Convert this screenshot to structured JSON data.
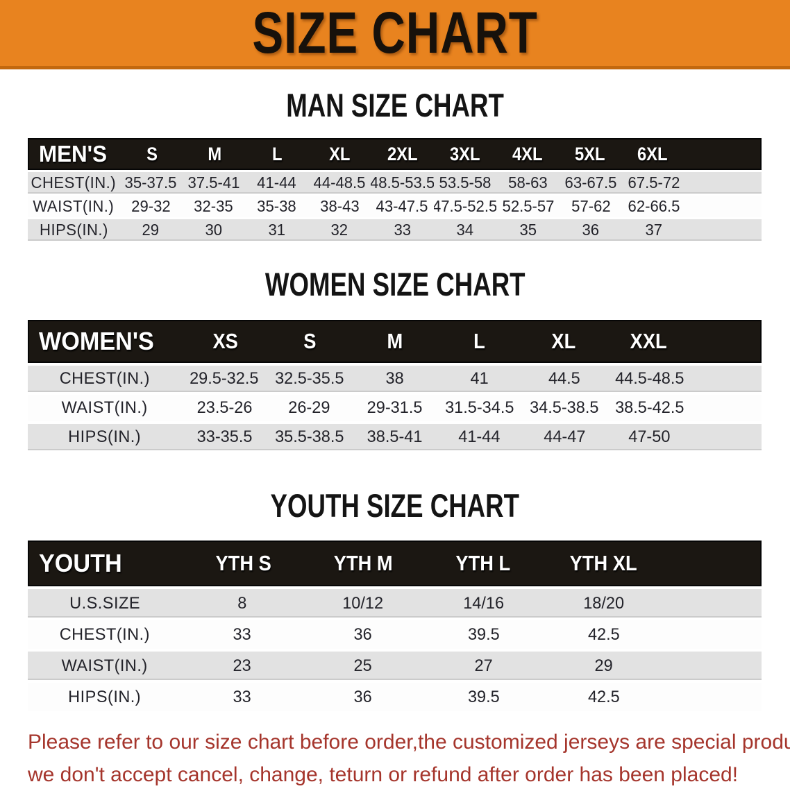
{
  "banner": {
    "title": "SIZE CHART"
  },
  "sections": [
    {
      "heading": "MAN SIZE CHART",
      "table": {
        "label": "MEN'S",
        "sizes": [
          "S",
          "M",
          "L",
          "XL",
          "2XL",
          "3XL",
          "4XL",
          "5XL",
          "6XL"
        ],
        "rows": [
          {
            "label": "CHEST(IN.)",
            "values": [
              "35-37.5",
              "37.5-41",
              "41-44",
              "44-48.5",
              "48.5-53.5",
              "53.5-58",
              "58-63",
              "63-67.5",
              "67.5-72"
            ]
          },
          {
            "label": "WAIST(IN.)",
            "values": [
              "29-32",
              "32-35",
              "35-38",
              "38-43",
              "43-47.5",
              "47.5-52.5",
              "52.5-57",
              "57-62",
              "62-66.5"
            ]
          },
          {
            "label": "HIPS(IN.)",
            "values": [
              "29",
              "30",
              "31",
              "32",
              "33",
              "34",
              "35",
              "36",
              "37"
            ]
          }
        ]
      }
    },
    {
      "heading": "WOMEN SIZE CHART",
      "table": {
        "label": "WOMEN'S",
        "sizes": [
          "XS",
          "S",
          "M",
          "L",
          "XL",
          "XXL"
        ],
        "rows": [
          {
            "label": "CHEST(IN.)",
            "values": [
              "29.5-32.5",
              "32.5-35.5",
              "38",
              "41",
              "44.5",
              "44.5-48.5"
            ]
          },
          {
            "label": "WAIST(IN.)",
            "values": [
              "23.5-26",
              "26-29",
              "29-31.5",
              "31.5-34.5",
              "34.5-38.5",
              "38.5-42.5"
            ]
          },
          {
            "label": "HIPS(IN.)",
            "values": [
              "33-35.5",
              "35.5-38.5",
              "38.5-41",
              "41-44",
              "44-47",
              "47-50"
            ]
          }
        ]
      }
    },
    {
      "heading": "YOUTH SIZE CHART",
      "table": {
        "label": "YOUTH",
        "sizes": [
          "YTH S",
          "YTH M",
          "YTH L",
          "YTH XL"
        ],
        "rows": [
          {
            "label": "U.S.SIZE",
            "values": [
              "8",
              "10/12",
              "14/16",
              "18/20"
            ]
          },
          {
            "label": "CHEST(IN.)",
            "values": [
              "33",
              "36",
              "39.5",
              "42.5"
            ]
          },
          {
            "label": "WAIST(IN.)",
            "values": [
              "23",
              "25",
              "27",
              "29"
            ]
          },
          {
            "label": "HIPS(IN.)",
            "values": [
              "33",
              "36",
              "39.5",
              "42.5"
            ]
          }
        ]
      }
    }
  ],
  "disclaimer": {
    "line1": "Please refer to our size chart before order,the customized jerseys are special products,",
    "line2": "we don't accept cancel, change, teturn or refund after order has been placed!"
  },
  "colors": {
    "banner_orange": "#E8831F",
    "banner_border": "#C2680E",
    "table_header_black": "#1B1712",
    "row_gray": "#E2E2E2",
    "disclaimer_red": "#A5352C"
  }
}
